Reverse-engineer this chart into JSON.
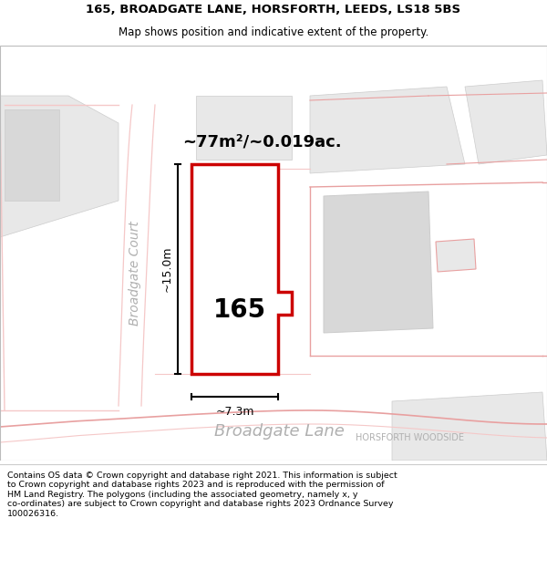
{
  "title_line1": "165, BROADGATE LANE, HORSFORTH, LEEDS, LS18 5BS",
  "title_line2": "Map shows position and indicative extent of the property.",
  "area_label": "~77m²/~0.019ac.",
  "dim_width": "~7.3m",
  "dim_height": "~15.0m",
  "number_label": "165",
  "street_label1": "Broadgate Lane",
  "street_label2": "HORSFORTH WOODSIDE",
  "road_label": "Broadgate Court",
  "footer_text": "Contains OS data © Crown copyright and database right 2021. This information is subject to Crown copyright and database rights 2023 and is reproduced with the permission of HM Land Registry. The polygons (including the associated geometry, namely x, y co-ordinates) are subject to Crown copyright and database rights 2023 Ordnance Survey 100026316.",
  "red_color": "#cc0000",
  "pink_color": "#e8a0a0",
  "light_pink": "#f5c8c8",
  "gray_light": "#e8e8e8",
  "gray_mid": "#d8d8d8",
  "text_gray": "#b0b0b0",
  "title_fs": 9.5,
  "subtitle_fs": 8.5,
  "area_fs": 13,
  "number_fs": 20,
  "street_fs": 13,
  "street2_fs": 7,
  "road_fs": 10,
  "dim_fs": 9,
  "footer_fs": 6.8
}
